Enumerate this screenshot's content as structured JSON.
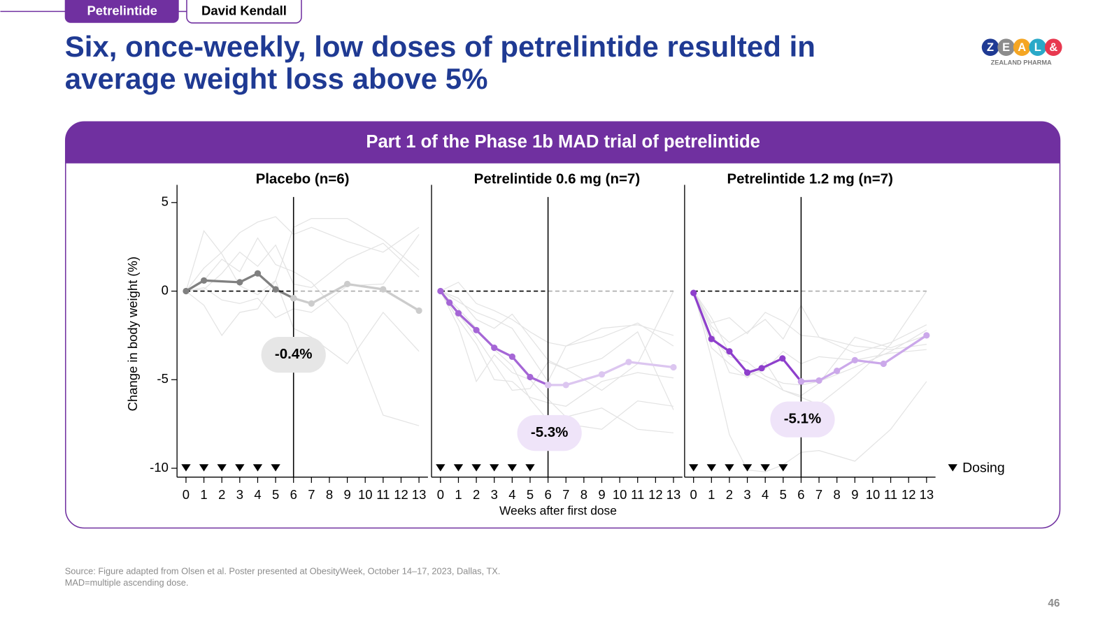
{
  "header": {
    "tab": "Petrelintide",
    "presenter": "David Kendall"
  },
  "title_lines": [
    "Six, once-weekly, low doses of petrelintide resulted in",
    "average weight loss above 5%"
  ],
  "logo": {
    "letters": [
      "Z",
      "E",
      "A",
      "L",
      "&"
    ],
    "text": "ZEALAND PHARMA"
  },
  "panel_title": "Part 1 of the Phase 1b MAD trial of petrelintide",
  "y_label": "Change in body weight (%)",
  "x_label": "Weeks after first dose",
  "dosing_label": "Dosing",
  "chart_data": [
    {
      "type": "line",
      "title": "Placebo (n=6)",
      "xlim": [
        -0.5,
        13.5
      ],
      "ylim": [
        -10.5,
        6
      ],
      "yticks": [
        -10,
        -5,
        0,
        5
      ],
      "xticks": [
        0,
        1,
        2,
        3,
        4,
        5,
        6,
        7,
        8,
        9,
        10,
        11,
        12,
        13
      ],
      "reference_x": 6,
      "reference_y": 0,
      "dosing_weeks": [
        0,
        1,
        2,
        3,
        4,
        5
      ],
      "annotation": {
        "x": 6,
        "value": -0.4,
        "label": "-0.4%"
      },
      "series": [
        {
          "color": "#e3e3e3",
          "x": [
            0,
            1,
            2,
            3,
            4,
            5,
            6,
            7,
            9,
            11,
            13
          ],
          "values": [
            0,
            3.4,
            2.1,
            0.3,
            -0.2,
            0.6,
            3.6,
            4.1,
            4.1,
            2.9,
            1.2
          ]
        },
        {
          "color": "#e3e3e3",
          "x": [
            0,
            1,
            2,
            3,
            4,
            5,
            6,
            7,
            9,
            11,
            13
          ],
          "values": [
            0,
            1.3,
            2.2,
            3.3,
            3.9,
            4.2,
            3.2,
            3.6,
            2.8,
            2.2,
            3.6
          ]
        },
        {
          "color": "#e3e3e3",
          "x": [
            0,
            1,
            2,
            3,
            4,
            5,
            6,
            7,
            9,
            11,
            13
          ],
          "values": [
            0,
            0.6,
            1.8,
            1.1,
            3.0,
            1.5,
            1.1,
            0.5,
            -1.8,
            -7.0,
            -7.6
          ]
        },
        {
          "color": "#e3e3e3",
          "x": [
            0,
            1,
            2,
            3,
            4,
            5,
            6,
            7,
            9,
            11,
            13
          ],
          "values": [
            0,
            -0.8,
            -2.5,
            -1.2,
            -1.0,
            0.6,
            -2.1,
            -2.6,
            -4.1,
            -1.2,
            -3.4
          ]
        },
        {
          "color": "#e3e3e3",
          "x": [
            0,
            1,
            2,
            3,
            4,
            5,
            6,
            7,
            9,
            11,
            13
          ],
          "values": [
            0,
            0.2,
            -0.5,
            -0.7,
            -0.4,
            -1.5,
            -1.0,
            -1.2,
            0.3,
            0.4,
            3.2
          ]
        },
        {
          "color": "#e3e3e3",
          "x": [
            0,
            1,
            2,
            3,
            4,
            5,
            6,
            7,
            9,
            11,
            13
          ],
          "values": [
            0,
            0.1,
            1.0,
            2.2,
            1.4,
            2.6,
            0.4,
            0.2,
            1.8,
            2.7,
            0.8
          ]
        },
        {
          "color": "#808080",
          "x": [
            0,
            1,
            3,
            4,
            5,
            6
          ],
          "values": [
            0,
            0.6,
            0.5,
            1.0,
            0.1,
            -0.4
          ]
        },
        {
          "color": "#cccccc",
          "x": [
            6,
            7,
            9,
            11,
            13
          ],
          "values": [
            -0.4,
            -0.7,
            0.4,
            0.1,
            -1.1
          ]
        }
      ]
    },
    {
      "type": "line",
      "title": "Petrelintide 0.6 mg (n=7)",
      "xlim": [
        -0.5,
        13.5
      ],
      "ylim": [
        -10.5,
        6
      ],
      "xticks": [
        0,
        1,
        2,
        3,
        4,
        5,
        6,
        7,
        8,
        9,
        10,
        11,
        12,
        13
      ],
      "reference_x": 6,
      "reference_y": 0,
      "dosing_weeks": [
        0,
        1,
        2,
        3,
        4,
        5
      ],
      "annotation": {
        "x": 6,
        "value": -5.3,
        "label": "-5.3%"
      },
      "series": [
        {
          "color": "#e3e3e3",
          "x": [
            0,
            1,
            2,
            3,
            4,
            5,
            6,
            7,
            9,
            11,
            13
          ],
          "values": [
            0,
            0.5,
            -0.7,
            -1.1,
            -1.6,
            -2.3,
            -2.9,
            -3.1,
            -2.6,
            -1.8,
            -3.1
          ]
        },
        {
          "color": "#e3e3e3",
          "x": [
            0,
            1,
            2,
            3,
            4,
            5,
            6,
            7,
            9,
            11,
            13
          ],
          "values": [
            0,
            -0.4,
            -1.6,
            -2.1,
            -1.3,
            -2.6,
            -3.9,
            -4.4,
            -5.6,
            -4.1,
            0
          ]
        },
        {
          "color": "#e3e3e3",
          "x": [
            0,
            1,
            2,
            3,
            4,
            5,
            6,
            7,
            9,
            11,
            13
          ],
          "values": [
            0,
            -1.6,
            -3.0,
            -5.0,
            -5.1,
            -6.0,
            -6.3,
            -6.5,
            -5.1,
            -4.6,
            -4.9
          ]
        },
        {
          "color": "#e3e3e3",
          "x": [
            0,
            1,
            2,
            3,
            4,
            5,
            6,
            7,
            9,
            11,
            13
          ],
          "values": [
            0,
            -2.0,
            -5.1,
            -3.6,
            -4.6,
            -5.0,
            -6.1,
            -7.1,
            -6.6,
            -7.8,
            -8.0
          ]
        },
        {
          "color": "#e3e3e3",
          "x": [
            0,
            1,
            2,
            3,
            4,
            5,
            6,
            7,
            9,
            11,
            13
          ],
          "values": [
            0,
            -1.3,
            -2.6,
            -4.1,
            -5.6,
            -5.5,
            -4.0,
            -4.4,
            -3.8,
            -2.3,
            -6.7
          ]
        },
        {
          "color": "#e3e3e3",
          "x": [
            0,
            1,
            2,
            3,
            4,
            5,
            6,
            7,
            9,
            11,
            13
          ],
          "values": [
            0,
            -1.0,
            -2.1,
            -3.3,
            -4.2,
            -6.1,
            -7.3,
            -7.5,
            -7.8,
            -6.2,
            -6.5
          ]
        },
        {
          "color": "#e3e3e3",
          "x": [
            0,
            1,
            2,
            3,
            4,
            5,
            6,
            7,
            9,
            11,
            13
          ],
          "values": [
            0,
            -0.6,
            -1.2,
            -1.6,
            -2.1,
            -3.6,
            -5.1,
            -3.1,
            -2.1,
            -1.9,
            -2.5
          ]
        },
        {
          "color": "#a566d6",
          "x": [
            0,
            0.5,
            1,
            2,
            3,
            4,
            5,
            6
          ],
          "values": [
            0,
            -0.65,
            -1.25,
            -2.2,
            -3.2,
            -3.7,
            -4.85,
            -5.3
          ]
        },
        {
          "color": "#dcc6f0",
          "x": [
            6,
            7,
            9,
            10.5,
            13
          ],
          "values": [
            -5.3,
            -5.3,
            -4.7,
            -4.0,
            -4.3
          ]
        }
      ]
    },
    {
      "type": "line",
      "title": "Petrelintide 1.2 mg (n=7)",
      "xlim": [
        -0.5,
        13.5
      ],
      "ylim": [
        -10.5,
        6
      ],
      "xticks": [
        0,
        1,
        2,
        3,
        4,
        5,
        6,
        7,
        8,
        9,
        10,
        11,
        12,
        13
      ],
      "reference_x": 6,
      "reference_y": 0,
      "dosing_weeks": [
        0,
        1,
        2,
        3,
        4,
        5
      ],
      "annotation": {
        "x": 6,
        "value": -5.1,
        "label": "-5.1%"
      },
      "series": [
        {
          "color": "#e3e3e3",
          "x": [
            0,
            1,
            2,
            3,
            4,
            5,
            6,
            7,
            9,
            11,
            13
          ],
          "values": [
            0,
            -2.0,
            -2.9,
            -2.3,
            -1.6,
            -2.7,
            -0.8,
            -2.6,
            -3.5,
            -2.9,
            -1.9
          ]
        },
        {
          "color": "#e3e3e3",
          "x": [
            0,
            1,
            2,
            3,
            4,
            5,
            6,
            7,
            9,
            11,
            13
          ],
          "values": [
            0,
            -1.8,
            -1.5,
            -2.4,
            -1.2,
            -1.7,
            -2.5,
            -2.6,
            -3.1,
            -3.3,
            -3.0
          ]
        },
        {
          "color": "#e3e3e3",
          "x": [
            0,
            1,
            2,
            3,
            4,
            5,
            6,
            7,
            9,
            11,
            13
          ],
          "values": [
            0,
            -3.2,
            -4.1,
            -4.9,
            -4.0,
            -5.6,
            -5.9,
            -5.2,
            -2.6,
            -3.2,
            -2.5
          ]
        },
        {
          "color": "#e3e3e3",
          "x": [
            0,
            1,
            2,
            3,
            4,
            5,
            6,
            7,
            9,
            11,
            13
          ],
          "values": [
            0,
            -3.8,
            -8.1,
            -10.1,
            -10.2,
            -9.8,
            -9.1,
            -9.0,
            -9.6,
            -7.8,
            -5.1
          ]
        },
        {
          "color": "#e3e3e3",
          "x": [
            0,
            1,
            2,
            3,
            4,
            5,
            6,
            7,
            9,
            11,
            13
          ],
          "values": [
            0,
            -2.2,
            -4.6,
            -4.8,
            -4.4,
            -3.4,
            -4.1,
            -3.7,
            -3.9,
            -3.5,
            -3.3
          ]
        },
        {
          "color": "#e3e3e3",
          "x": [
            0,
            1,
            2,
            3,
            4,
            5,
            6,
            7,
            9,
            11,
            13
          ],
          "values": [
            0,
            -1.5,
            -3.5,
            -4.5,
            -5.0,
            -5.6,
            -6.0,
            -6.4,
            -4.8,
            -3.0,
            0
          ]
        },
        {
          "color": "#e3e3e3",
          "x": [
            0,
            1,
            2,
            3,
            4,
            5,
            6,
            7,
            9,
            11,
            13
          ],
          "values": [
            0,
            -2.6,
            -3.7,
            -4.0,
            -4.8,
            -5.2,
            -5.3,
            -5.1,
            -4.3,
            -3.4,
            -2.2
          ]
        },
        {
          "color": "#8e3fcc",
          "x": [
            0,
            1,
            2,
            3,
            3.8,
            4.96,
            6
          ],
          "values": [
            -0.1,
            -2.7,
            -3.4,
            -4.6,
            -4.35,
            -3.8,
            -5.1
          ]
        },
        {
          "color": "#cba8ea",
          "x": [
            6,
            7,
            8,
            9,
            10.6,
            13
          ],
          "values": [
            -5.1,
            -5.05,
            -4.5,
            -3.9,
            -4.1,
            -2.5
          ]
        }
      ]
    }
  ],
  "footnotes": [
    "Source: Figure adapted from Olsen et al. Poster presented at ObesityWeek, October 14–17, 2023, Dallas, TX.",
    "MAD=multiple ascending dose."
  ],
  "page_number": "46"
}
